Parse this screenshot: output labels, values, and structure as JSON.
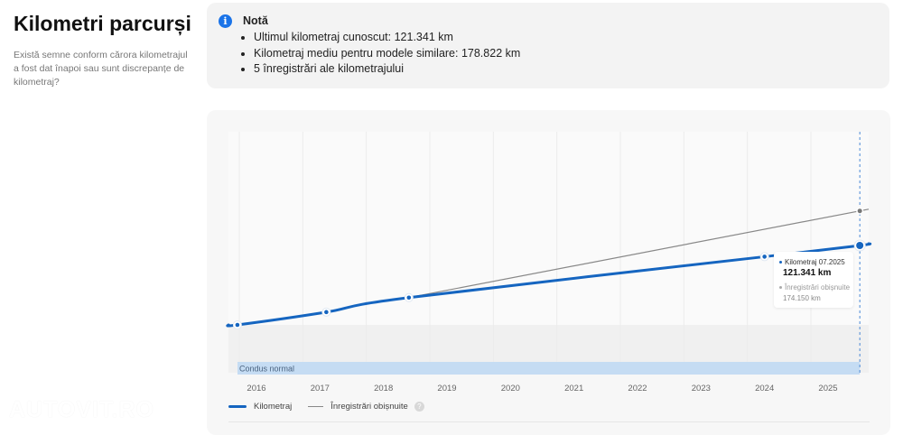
{
  "section": {
    "title": "Kilometri parcurși",
    "subtitle": "Există semne conform cărora kilometrajul a fost dat înapoi sau sunt discrepanțe de kilometraj?"
  },
  "note": {
    "icon": "info-icon",
    "title": "Notă",
    "items": [
      "Ultimul kilometraj cunoscut: 121.341 km",
      "Kilometraj mediu pentru modele similare: 178.822 km",
      "5 înregistrări ale kilometrajului"
    ]
  },
  "chart_data": {
    "type": "line",
    "title": "",
    "xlabel": "",
    "ylabel": "",
    "x_ticks": [
      "2016",
      "2017",
      "2018",
      "2019",
      "2020",
      "2021",
      "2022",
      "2023",
      "2024",
      "2025"
    ],
    "xlim": [
      2015.6,
      2025.7
    ],
    "ylim": [
      -20000,
      230000
    ],
    "grid": "vertical",
    "series": [
      {
        "name": "Kilometraj",
        "color": "#1565c0",
        "x": [
          2015.7,
          2017.1,
          2018.4,
          2024.0,
          2025.5
        ],
        "values": [
          0,
          19500,
          41700,
          104200,
          121341
        ]
      },
      {
        "name": "Înregistrări obișnuite",
        "color": "#888888",
        "x": [
          2018.4,
          2025.5
        ],
        "values": [
          41700,
          174150
        ]
      }
    ],
    "band": {
      "label": "Condus normal",
      "color": "#c5dcf3"
    },
    "marker_line_x": 2025.5,
    "tooltip": {
      "series1_label": "Kilometraj 07.2025",
      "series1_value": "121.341 km",
      "series2_label": "Înregistrări obișnuite",
      "series2_value": "174.150 km"
    },
    "legend": {
      "placement": "bottom-left",
      "items": [
        "Kilometraj",
        "Înregistrări obișnuite"
      ]
    }
  },
  "watermark": "AUTOVIT.RO"
}
